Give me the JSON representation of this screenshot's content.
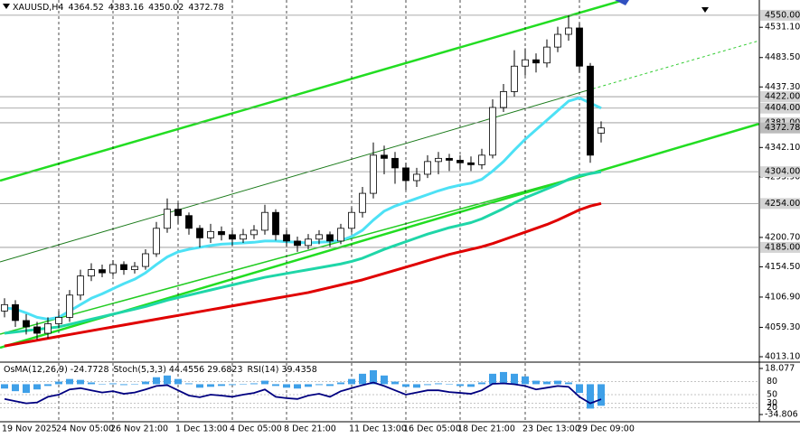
{
  "chart_data": [
    {
      "type": "candlestick",
      "title": "XAUUSD,H4",
      "categories": [
        "19 Nov 2025",
        null,
        null,
        null,
        null,
        "24 Nov 05:00",
        null,
        null,
        null,
        null,
        "26 Nov 21:00",
        null,
        null,
        null,
        null,
        null,
        "1 Dec 13:00",
        null,
        null,
        null,
        null,
        "4 Dec 05:00",
        null,
        null,
        null,
        null,
        "8 Dec 21:00",
        null,
        null,
        null,
        null,
        null,
        "11 Dec 13:00",
        null,
        null,
        null,
        null,
        "16 Dec 05:00",
        null,
        null,
        null,
        null,
        "18 Dec 21:00",
        null,
        null,
        null,
        null,
        null,
        "23 Dec 13:00",
        null,
        null,
        null,
        null,
        "29 Dec 09:00",
        null,
        null
      ],
      "open": [
        4085,
        4095,
        4070,
        4060,
        4050,
        4065,
        4075,
        4110,
        4140,
        4150,
        4145,
        4158,
        4150,
        4155,
        4175,
        4215,
        4245,
        4235,
        4215,
        4200,
        4210,
        4205,
        4198,
        4205,
        4212,
        4240,
        4205,
        4195,
        4188,
        4198,
        4205,
        4195,
        4215,
        4240,
        4270,
        4330,
        4325,
        4310,
        4290,
        4300,
        4320,
        4325,
        4322,
        4318,
        4315,
        4330,
        4405,
        4430,
        4470,
        4480,
        4475,
        4500,
        4520,
        4530,
        4470,
        4364.52
      ],
      "high": [
        4105,
        4102,
        4080,
        4068,
        4075,
        4085,
        4118,
        4150,
        4160,
        4158,
        4165,
        4163,
        4162,
        4182,
        4225,
        4262,
        4255,
        4240,
        4220,
        4222,
        4218,
        4212,
        4214,
        4220,
        4252,
        4245,
        4212,
        4202,
        4206,
        4212,
        4210,
        4222,
        4248,
        4280,
        4350,
        4345,
        4335,
        4318,
        4310,
        4330,
        4335,
        4332,
        4330,
        4328,
        4340,
        4418,
        4442,
        4495,
        4498,
        4490,
        4512,
        4532,
        4550,
        4538,
        4475,
        4383.16
      ],
      "low": [
        4075,
        4060,
        4048,
        4040,
        4042,
        4058,
        4068,
        4102,
        4132,
        4138,
        4140,
        4142,
        4144,
        4150,
        4170,
        4208,
        4222,
        4205,
        4185,
        4192,
        4196,
        4188,
        4192,
        4198,
        4205,
        4196,
        4186,
        4178,
        4182,
        4190,
        4186,
        4190,
        4208,
        4232,
        4262,
        4300,
        4285,
        4275,
        4280,
        4294,
        4300,
        4305,
        4308,
        4305,
        4308,
        4325,
        4398,
        4422,
        4455,
        4460,
        4468,
        4492,
        4510,
        4460,
        4318,
        4350.02
      ],
      "close": [
        4095,
        4070,
        4060,
        4050,
        4065,
        4075,
        4110,
        4140,
        4150,
        4145,
        4158,
        4150,
        4155,
        4175,
        4215,
        4245,
        4235,
        4215,
        4200,
        4210,
        4205,
        4198,
        4205,
        4212,
        4240,
        4205,
        4195,
        4188,
        4198,
        4205,
        4195,
        4215,
        4240,
        4270,
        4330,
        4325,
        4310,
        4290,
        4300,
        4320,
        4325,
        4322,
        4318,
        4315,
        4330,
        4405,
        4430,
        4470,
        4480,
        4475,
        4500,
        4520,
        4530,
        4470,
        4330,
        4372.78
      ],
      "series": [
        {
          "color": "#4de1f5",
          "values": [
            4090,
            4088,
            4082,
            4075,
            4072,
            4075,
            4085,
            4095,
            4105,
            4112,
            4120,
            4128,
            4135,
            4145,
            4158,
            4170,
            4178,
            4182,
            4185,
            4188,
            4190,
            4191,
            4192,
            4193,
            4195,
            4195,
            4194,
            4193,
            4192,
            4193,
            4194,
            4196,
            4202,
            4212,
            4228,
            4242,
            4250,
            4256,
            4262,
            4268,
            4274,
            4279,
            4283,
            4286,
            4292,
            4305,
            4320,
            4338,
            4355,
            4370,
            4385,
            4400,
            4415,
            4420,
            4412,
            4404
          ]
        },
        {
          "color": "#1fd6a8",
          "values": [
            4050,
            4052,
            4054,
            4056,
            4058,
            4060,
            4064,
            4068,
            4072,
            4076,
            4080,
            4084,
            4088,
            4092,
            4097,
            4102,
            4106,
            4110,
            4114,
            4118,
            4122,
            4126,
            4130,
            4134,
            4138,
            4141,
            4144,
            4147,
            4150,
            4153,
            4156,
            4159,
            4163,
            4168,
            4175,
            4182,
            4188,
            4194,
            4200,
            4206,
            4211,
            4216,
            4220,
            4224,
            4230,
            4238,
            4246,
            4255,
            4263,
            4270,
            4277,
            4284,
            4292,
            4298,
            4301,
            4304
          ]
        },
        {
          "color": "#e00000",
          "values": [
            4030,
            4033,
            4036,
            4039,
            4042,
            4045,
            4048,
            4051,
            4054,
            4057,
            4060,
            4063,
            4066,
            4069,
            4072,
            4075,
            4078,
            4081,
            4084,
            4087,
            4090,
            4093,
            4096,
            4099,
            4102,
            4105,
            4108,
            4111,
            4114,
            4118,
            4122,
            4126,
            4130,
            4134,
            4139,
            4144,
            4149,
            4154,
            4159,
            4164,
            4169,
            4174,
            4178,
            4182,
            4186,
            4191,
            4197,
            4203,
            4209,
            4215,
            4221,
            4228,
            4236,
            4244,
            4250,
            4254
          ]
        }
      ],
      "ylim": [
        4006,
        4574
      ],
      "yticks": [
        {
          "value": 4531.1,
          "label": "4531.10"
        },
        {
          "value": 4483.5,
          "label": "4483.50"
        },
        {
          "value": 4437.3,
          "label": "4437.30"
        },
        {
          "value": 4342.1,
          "label": "4342.10"
        },
        {
          "value": 4295.9,
          "label": "4295.90"
        },
        {
          "value": 4200.7,
          "label": "4200.70"
        },
        {
          "value": 4154.5,
          "label": "4154.50"
        },
        {
          "value": 4106.9,
          "label": "4106.90"
        },
        {
          "value": 4059.3,
          "label": "4059.30"
        },
        {
          "value": 4013.1,
          "label": "4013.10"
        }
      ],
      "levels": [
        {
          "value": 4550,
          "label": "4550.00"
        },
        {
          "value": 4422,
          "label": "4422.00"
        },
        {
          "value": 4404,
          "label": "4404.00"
        },
        {
          "value": 4381,
          "label": "4381.00"
        },
        {
          "value": 4304,
          "label": "4304.00"
        },
        {
          "value": 4254,
          "label": "4254.00"
        },
        {
          "value": 4185,
          "label": "4185.00"
        }
      ],
      "grid": true
    },
    {
      "type": "oscillator",
      "series": [
        {
          "name": "OsMA(12,26,9)",
          "color": "#3fa0e8",
          "values": [
            -5,
            -8,
            -10,
            -6,
            -2,
            3,
            6,
            5,
            2,
            0,
            1,
            -1,
            0,
            3,
            8,
            10,
            6,
            1,
            -4,
            -3,
            -2,
            -1,
            0,
            1,
            4,
            -2,
            -4,
            -5,
            -3,
            -1,
            -2,
            2,
            6,
            12,
            16,
            10,
            3,
            -3,
            -4,
            -1,
            1,
            0,
            -2,
            -3,
            2,
            12,
            14,
            12,
            9,
            4,
            3,
            4,
            2,
            -10,
            -28,
            -24.7728
          ]
        },
        {
          "name": "RSI(14)",
          "color": "#000080",
          "axis": "y2",
          "values": [
            40,
            35,
            30,
            32,
            45,
            50,
            62,
            65,
            60,
            55,
            58,
            52,
            55,
            62,
            70,
            72,
            60,
            48,
            44,
            50,
            48,
            45,
            50,
            54,
            62,
            45,
            42,
            40,
            48,
            52,
            45,
            58,
            65,
            72,
            78,
            70,
            60,
            50,
            55,
            60,
            60,
            56,
            54,
            52,
            60,
            75,
            76,
            74,
            70,
            62,
            66,
            70,
            68,
            45,
            30,
            39.4358
          ]
        }
      ],
      "stoch_name": "Stoch(5,3,3)",
      "stoch_values": [
        44.4556,
        29.6823
      ],
      "ylim": [
        -34.806,
        18.077
      ],
      "yticks": [
        18.077,
        -34.806
      ],
      "y2lim": [
        0,
        100
      ],
      "y2ticks": [
        80,
        50,
        30,
        20
      ]
    }
  ]
}
